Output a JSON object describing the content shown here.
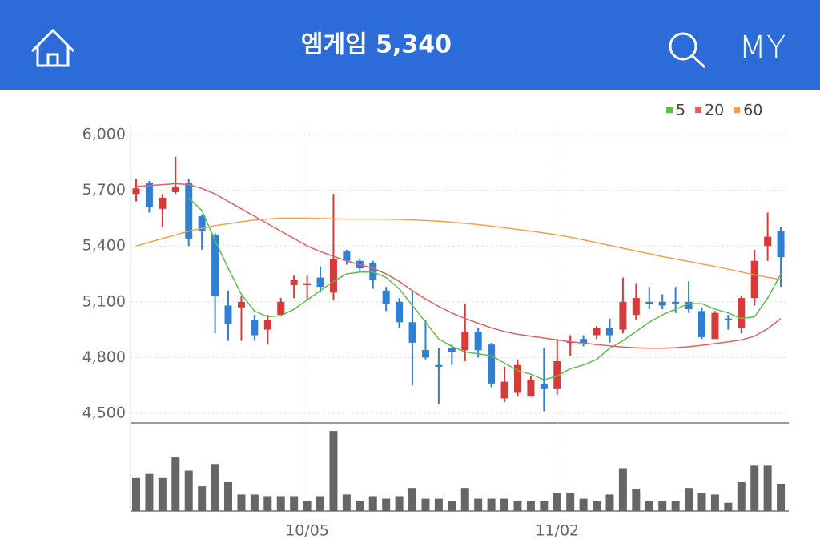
{
  "nav": {
    "my": "MY"
  },
  "chart_data": {
    "type": "candlestick",
    "title": "엠게임 5,340",
    "categories": [
      null,
      null,
      null,
      null,
      null,
      null,
      null,
      null,
      null,
      null,
      null,
      null,
      null,
      "10/05",
      null,
      null,
      null,
      null,
      null,
      null,
      null,
      null,
      null,
      null,
      null,
      null,
      null,
      null,
      null,
      null,
      null,
      null,
      "11/02",
      null,
      null,
      null,
      null,
      null,
      null,
      null,
      null,
      null,
      null,
      null,
      null,
      null,
      null,
      null,
      null,
      null
    ],
    "open": [
      5680,
      5740,
      5600,
      5690,
      5740,
      5560,
      5460,
      5080,
      5070,
      5000,
      4950,
      5030,
      5190,
      5190,
      5230,
      5150,
      5370,
      5320,
      5310,
      5160,
      5100,
      4990,
      4840,
      4760,
      4850,
      4840,
      4940,
      4870,
      4580,
      4610,
      4590,
      4660,
      4630,
      4880,
      4900,
      4920,
      4960,
      4950,
      5030,
      5100,
      5100,
      5100,
      5100,
      5050,
      4900,
      5010,
      4960,
      5120,
      5400,
      5480
    ],
    "high": [
      5760,
      5750,
      5680,
      5880,
      5760,
      5570,
      5470,
      5160,
      5130,
      5030,
      5030,
      5120,
      5240,
      5240,
      5290,
      5680,
      5380,
      5330,
      5320,
      5180,
      5120,
      5160,
      5000,
      4850,
      4870,
      5090,
      4960,
      4880,
      4750,
      4790,
      4700,
      4850,
      4900,
      4920,
      4920,
      4970,
      5010,
      5230,
      5200,
      5180,
      5140,
      5180,
      5210,
      5070,
      5050,
      5030,
      5130,
      5380,
      5580,
      5500
    ],
    "low": [
      5640,
      5580,
      5500,
      5680,
      5400,
      5380,
      4930,
      4890,
      4890,
      4890,
      4870,
      5030,
      5120,
      5110,
      5150,
      5110,
      5300,
      5260,
      5170,
      5050,
      4960,
      4650,
      4790,
      4550,
      4760,
      4780,
      4800,
      4640,
      4560,
      4590,
      4590,
      4510,
      4600,
      4810,
      4860,
      4900,
      4880,
      4930,
      5000,
      5060,
      5060,
      5040,
      5040,
      4900,
      4900,
      4950,
      4930,
      5080,
      5320,
      5180
    ],
    "close": [
      5710,
      5610,
      5660,
      5720,
      5440,
      5480,
      5130,
      4980,
      5100,
      4920,
      5000,
      5100,
      5220,
      5200,
      5180,
      5330,
      5320,
      5280,
      5220,
      5090,
      4990,
      4880,
      4800,
      4750,
      4830,
      4940,
      4840,
      4660,
      4670,
      4760,
      4680,
      4630,
      4780,
      4885,
      4880,
      4960,
      4920,
      5100,
      5120,
      5090,
      5080,
      5090,
      5060,
      4910,
      5040,
      5000,
      5120,
      5320,
      5450,
      5340
    ],
    "up_color": "#d83a3a",
    "down_color": "#2f7fd4",
    "volume": [
      40,
      45,
      40,
      65,
      49,
      30,
      57,
      35,
      20,
      20,
      18,
      18,
      18,
      12,
      18,
      97,
      20,
      12,
      18,
      15,
      18,
      28,
      15,
      15,
      12,
      28,
      15,
      15,
      15,
      12,
      12,
      12,
      22,
      22,
      15,
      12,
      20,
      52,
      27,
      12,
      12,
      12,
      28,
      22,
      20,
      10,
      35,
      55,
      55,
      33
    ],
    "volume_color": "#666666",
    "volume_ylim": [
      0,
      100
    ],
    "series": [
      {
        "name": "5",
        "color": "#5cbf4a",
        "values": [
          null,
          null,
          null,
          null,
          5660,
          5590,
          5430,
          5280,
          5140,
          5050,
          5020,
          5025,
          5060,
          5110,
          5160,
          5210,
          5250,
          5260,
          5260,
          5230,
          5170,
          5080,
          4990,
          4900,
          4860,
          4830,
          4820,
          4810,
          4770,
          4730,
          4710,
          4680,
          4700,
          4740,
          4760,
          4790,
          4850,
          4890,
          4940,
          4990,
          5030,
          5060,
          5090,
          5090,
          5060,
          5040,
          5010,
          5020,
          5120,
          5250
        ]
      },
      {
        "name": "20",
        "color": "#e06060",
        "values": [
          5720,
          5725,
          5730,
          5735,
          5730,
          5710,
          5680,
          5640,
          5600,
          5560,
          5520,
          5480,
          5440,
          5400,
          5370,
          5345,
          5320,
          5300,
          5280,
          5250,
          5210,
          5160,
          5115,
          5075,
          5040,
          5010,
          4985,
          4960,
          4940,
          4925,
          4915,
          4905,
          4895,
          4885,
          4878,
          4870,
          4863,
          4857,
          4852,
          4850,
          4850,
          4853,
          4858,
          4866,
          4875,
          4885,
          4895,
          4915,
          4955,
          5010
        ]
      },
      {
        "name": "60",
        "color": "#f0a050",
        "values": [
          5400,
          5420,
          5440,
          5460,
          5480,
          5495,
          5510,
          5520,
          5530,
          5540,
          5545,
          5550,
          5550,
          5550,
          5548,
          5546,
          5545,
          5545,
          5545,
          5544,
          5543,
          5540,
          5537,
          5533,
          5528,
          5522,
          5515,
          5507,
          5498,
          5489,
          5480,
          5470,
          5460,
          5447,
          5433,
          5418,
          5403,
          5388,
          5373,
          5358,
          5343,
          5330,
          5317,
          5303,
          5290,
          5275,
          5260,
          5245,
          5232,
          5220
        ]
      }
    ],
    "ylim": [
      4500,
      6000
    ],
    "yticks": [
      {
        "value": 4500,
        "label": "4,500"
      },
      {
        "value": 4800,
        "label": "4,800"
      },
      {
        "value": 5100,
        "label": "5,100"
      },
      {
        "value": 5400,
        "label": "5,400"
      },
      {
        "value": 5700,
        "label": "5,700"
      },
      {
        "value": 6000,
        "label": "6,000"
      }
    ],
    "grid": true
  }
}
